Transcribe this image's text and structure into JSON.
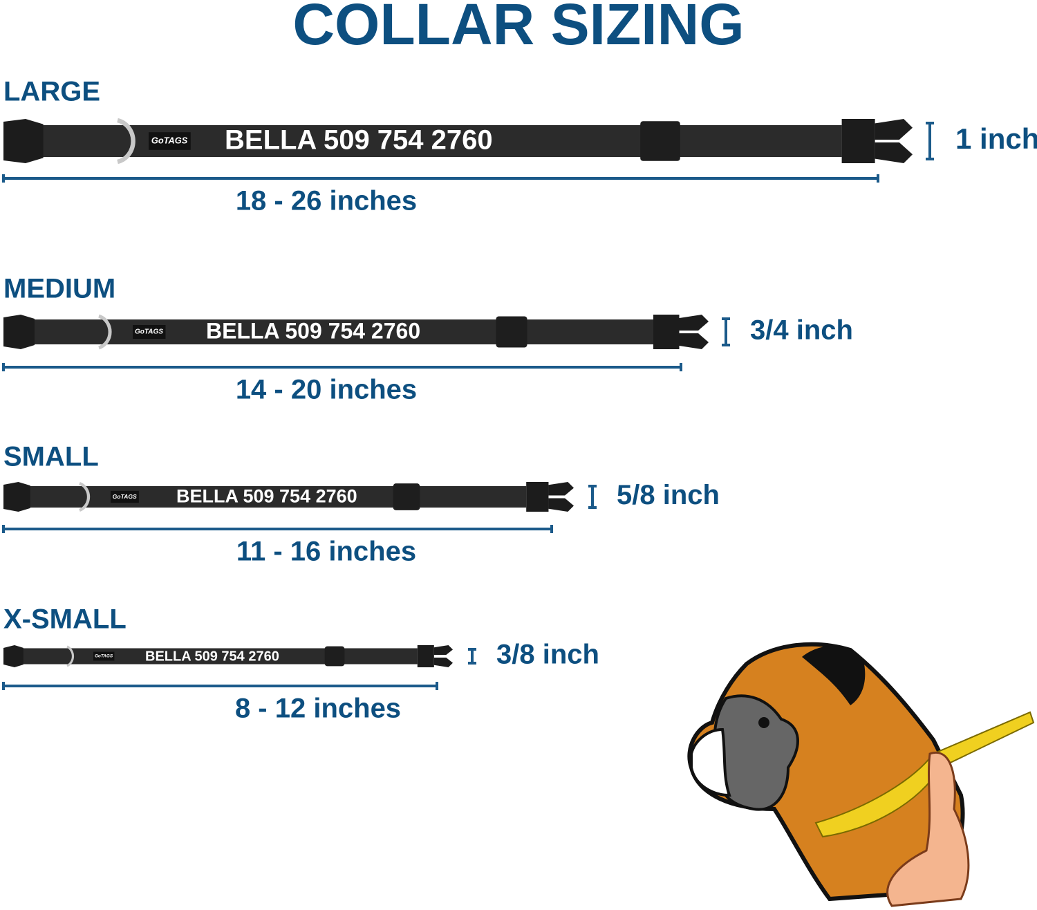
{
  "title": "COLLAR SIZING",
  "sizes": [
    {
      "label": "LARGE",
      "logo": "GoTAGS",
      "engraving": "BELLA 509 754 2760",
      "width": "1 inch",
      "length": "18 - 26 inches"
    },
    {
      "label": "MEDIUM",
      "logo": "GoTAGS",
      "engraving": "BELLA 509 754 2760",
      "width": "3/4 inch",
      "length": "14 - 20 inches"
    },
    {
      "label": "SMALL",
      "logo": "GoTAGS",
      "engraving": "BELLA 509 754 2760",
      "width": "5/8 inch",
      "length": "11 - 16 inches"
    },
    {
      "label": "X-SMALL",
      "logo": "GoTAGS",
      "engraving": "BELLA 509 754 2760",
      "width": "3/8 inch",
      "length": "8 - 12 inches"
    }
  ]
}
